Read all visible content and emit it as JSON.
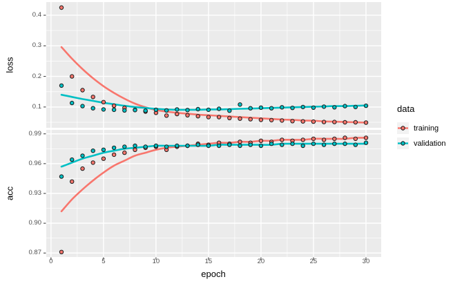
{
  "figure": {
    "background": "#FFFFFF"
  },
  "chart_data": {
    "type": "scatter",
    "title": "",
    "xlabel": "epoch",
    "x": [
      1,
      2,
      3,
      4,
      5,
      6,
      7,
      8,
      9,
      10,
      11,
      12,
      13,
      14,
      15,
      16,
      17,
      18,
      19,
      20,
      21,
      22,
      23,
      24,
      25,
      26,
      27,
      28,
      29,
      30
    ],
    "xlim": [
      -0.45,
      31.45
    ],
    "x_tick_values": [
      0,
      5,
      10,
      15,
      20,
      25,
      30
    ],
    "x_tick_labels": [
      "0",
      "5",
      "10",
      "15",
      "20",
      "25",
      "30"
    ],
    "x_minor_ticks": [
      2.5,
      7.5,
      12.5,
      17.5,
      22.5,
      27.5
    ],
    "panel_background": "#EBEBEB",
    "grid_color": "#FFFFFF",
    "point_outline": "#1A1A1A",
    "tick_color": "#333333",
    "axis_text_color": "#4D4D4D",
    "facets": [
      {
        "ylabel": "loss",
        "ylim": [
          0.032,
          0.443
        ],
        "y_tick_values": [
          0.1,
          0.2,
          0.3,
          0.4
        ],
        "y_tick_labels": [
          "0.1",
          "0.2",
          "0.3",
          "0.4"
        ],
        "y_minor_ticks": [
          0.05,
          0.15,
          0.25,
          0.35
        ],
        "series": [
          {
            "name": "training",
            "color": "#F8766D",
            "points": [
              0.425,
              0.2,
              0.155,
              0.133,
              0.116,
              0.104,
              0.097,
              0.091,
              0.085,
              0.081,
              0.072,
              0.077,
              0.073,
              0.07,
              0.067,
              0.067,
              0.064,
              0.062,
              0.06,
              0.058,
              0.057,
              0.056,
              0.054,
              0.053,
              0.052,
              0.051,
              0.051,
              0.05,
              0.05,
              0.049
            ],
            "smooth": [
              0.296,
              0.258,
              0.224,
              0.194,
              0.168,
              0.146,
              0.127,
              0.111,
              0.099,
              0.09,
              0.085,
              0.081,
              0.078,
              0.075,
              0.073,
              0.071,
              0.069,
              0.067,
              0.065,
              0.063,
              0.061,
              0.059,
              0.058,
              0.056,
              0.055,
              0.053,
              0.052,
              0.051,
              0.05,
              0.049
            ]
          },
          {
            "name": "validation",
            "color": "#00BFC4",
            "points": [
              0.17,
              0.113,
              0.103,
              0.096,
              0.092,
              0.091,
              0.089,
              0.09,
              0.088,
              0.091,
              0.089,
              0.092,
              0.09,
              0.093,
              0.091,
              0.094,
              0.088,
              0.108,
              0.096,
              0.098,
              0.096,
              0.099,
              0.097,
              0.1,
              0.098,
              0.101,
              0.099,
              0.103,
              0.1,
              0.104
            ],
            "smooth": [
              0.14,
              0.133,
              0.126,
              0.12,
              0.114,
              0.109,
              0.104,
              0.1,
              0.097,
              0.094,
              0.092,
              0.091,
              0.091,
              0.091,
              0.092,
              0.092,
              0.093,
              0.094,
              0.095,
              0.096,
              0.097,
              0.098,
              0.099,
              0.1,
              0.101,
              0.102,
              0.103,
              0.103,
              0.104,
              0.105
            ]
          }
        ]
      },
      {
        "ylabel": "acc",
        "ylim": [
          0.866,
          0.994
        ],
        "y_tick_values": [
          0.87,
          0.9,
          0.93,
          0.96,
          0.99
        ],
        "y_tick_labels": [
          "0.87",
          "0.90",
          "0.93",
          "0.96",
          "0.99"
        ],
        "y_minor_ticks": [
          0.885,
          0.915,
          0.945,
          0.975
        ],
        "series": [
          {
            "name": "training",
            "color": "#F8766D",
            "points": [
              0.871,
              0.942,
              0.955,
              0.961,
              0.965,
              0.969,
              0.971,
              0.974,
              0.976,
              0.977,
              0.974,
              0.977,
              0.978,
              0.98,
              0.979,
              0.981,
              0.98,
              0.982,
              0.981,
              0.983,
              0.982,
              0.984,
              0.983,
              0.984,
              0.985,
              0.984,
              0.985,
              0.986,
              0.985,
              0.986
            ],
            "smooth": [
              0.912,
              0.924,
              0.934,
              0.943,
              0.951,
              0.958,
              0.963,
              0.968,
              0.971,
              0.974,
              0.976,
              0.977,
              0.978,
              0.979,
              0.98,
              0.981,
              0.981,
              0.982,
              0.982,
              0.983,
              0.983,
              0.984,
              0.984,
              0.984,
              0.985,
              0.985,
              0.985,
              0.985,
              0.986,
              0.986
            ]
          },
          {
            "name": "validation",
            "color": "#00BFC4",
            "points": [
              0.947,
              0.964,
              0.968,
              0.973,
              0.974,
              0.976,
              0.977,
              0.978,
              0.977,
              0.978,
              0.977,
              0.978,
              0.978,
              0.979,
              0.978,
              0.978,
              0.979,
              0.978,
              0.979,
              0.978,
              0.98,
              0.979,
              0.98,
              0.978,
              0.98,
              0.979,
              0.98,
              0.98,
              0.979,
              0.981
            ],
            "smooth": [
              0.957,
              0.961,
              0.965,
              0.968,
              0.971,
              0.973,
              0.975,
              0.976,
              0.977,
              0.978,
              0.978,
              0.978,
              0.978,
              0.978,
              0.978,
              0.979,
              0.979,
              0.979,
              0.979,
              0.979,
              0.979,
              0.98,
              0.98,
              0.98,
              0.98,
              0.98,
              0.98,
              0.98,
              0.98,
              0.98
            ]
          }
        ]
      }
    ],
    "legend": {
      "title": "data",
      "position": "right",
      "key_background": "#F2F2F2",
      "entries": [
        {
          "label": "training",
          "color": "#F8766D"
        },
        {
          "label": "validation",
          "color": "#00BFC4"
        }
      ]
    }
  }
}
